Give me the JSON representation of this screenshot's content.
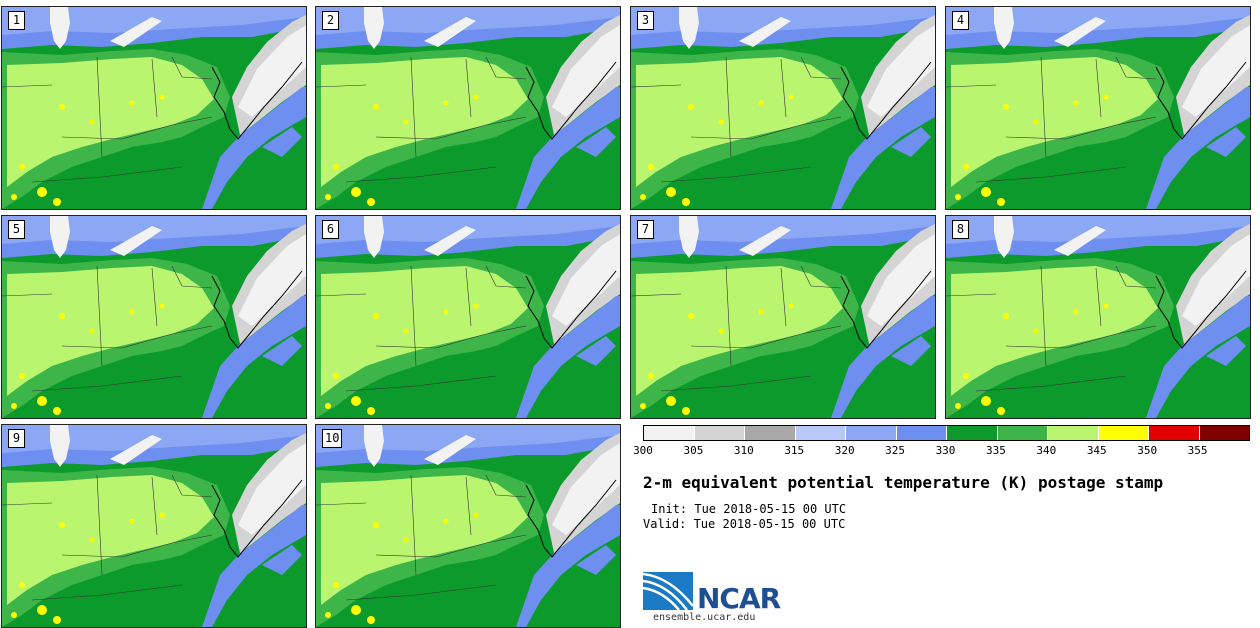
{
  "panels": [
    {
      "label": "1"
    },
    {
      "label": "2"
    },
    {
      "label": "3"
    },
    {
      "label": "4"
    },
    {
      "label": "5"
    },
    {
      "label": "6"
    },
    {
      "label": "7"
    },
    {
      "label": "8"
    },
    {
      "label": "9"
    },
    {
      "label": "10"
    }
  ],
  "legend": {
    "colors": [
      "#f2f2f2",
      "#d4d4d4",
      "#a8a8a8",
      "#b8c8f8",
      "#8ca8f5",
      "#6e8ef0",
      "#0b9a2b",
      "#3db548",
      "#b9f56e",
      "#ffff00",
      "#e30000",
      "#800000"
    ],
    "tick_labels": [
      "300",
      "305",
      "310",
      "315",
      "320",
      "325",
      "330",
      "335",
      "340",
      "345",
      "350",
      "355"
    ]
  },
  "title": "2-m equivalent potential temperature (K) postage stamp",
  "init": "Init: Tue 2018-05-15 00 UTC",
  "valid": "Valid: Tue 2018-05-15 00 UTC",
  "logo": {
    "text": "NCAR"
  },
  "site": "ensemble.ucar.edu"
}
